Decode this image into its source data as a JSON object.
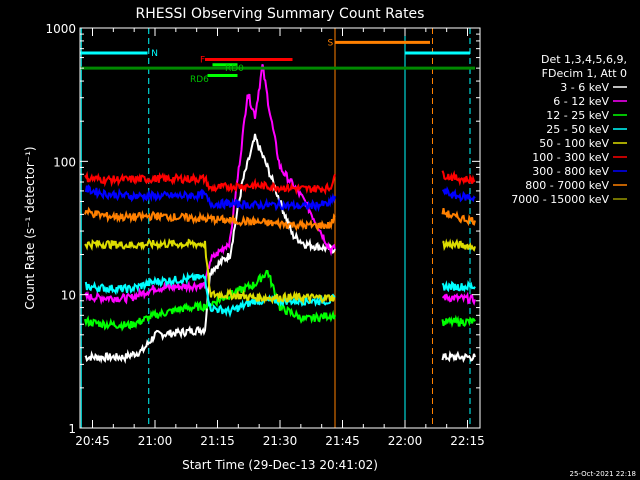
{
  "chart_data": {
    "type": "line",
    "title": "RHESSI Observing Summary Count Rates",
    "xlabel": "Start Time (29-Dec-13 20:41:02)",
    "ylabel": "Count Rate (s⁻¹ detector⁻¹)",
    "y_scale": "log",
    "ylim": [
      1,
      1000
    ],
    "y_ticks": [
      1,
      10,
      100,
      1000
    ],
    "y_tick_labels": [
      "1",
      "10",
      "100",
      "1000"
    ],
    "xlim": [
      20.7,
      22.3
    ],
    "x_ticks": [
      20.75,
      21.0,
      21.25,
      21.5,
      21.75,
      22.0,
      22.25
    ],
    "x_tick_labels": [
      "20:45",
      "21:00",
      "21:15",
      "21:30",
      "21:45",
      "22:00",
      "22:15"
    ],
    "grid": false,
    "legend": {
      "placement": "right",
      "header": [
        "Det 1,3,4,5,6,9,",
        "FDecim 1, Att 0"
      ]
    },
    "series": [
      {
        "name": "3 - 6 keV",
        "color": "#ffffff",
        "points": [
          [
            20.72,
            3.4
          ],
          [
            20.8,
            3.4
          ],
          [
            20.88,
            3.4
          ],
          [
            20.95,
            3.8
          ],
          [
            21.0,
            5.0
          ],
          [
            21.1,
            5.2
          ],
          [
            21.2,
            5.5
          ],
          [
            21.22,
            15
          ],
          [
            21.3,
            20
          ],
          [
            21.35,
            70
          ],
          [
            21.4,
            150
          ],
          [
            21.45,
            90
          ],
          [
            21.5,
            50
          ],
          [
            21.55,
            28
          ],
          [
            21.6,
            24
          ],
          [
            21.7,
            22
          ],
          [
            21.72,
            22
          ],
          [
            22.15,
            3.4
          ],
          [
            22.28,
            3.4
          ]
        ]
      },
      {
        "name": "6 - 12 keV",
        "color": "#ff00ff",
        "points": [
          [
            20.72,
            9.6
          ],
          [
            20.8,
            9.5
          ],
          [
            20.9,
            9.4
          ],
          [
            21.0,
            11.2
          ],
          [
            21.1,
            11.5
          ],
          [
            21.2,
            11.8
          ],
          [
            21.22,
            18
          ],
          [
            21.3,
            25
          ],
          [
            21.35,
            150
          ],
          [
            21.37,
            330
          ],
          [
            21.4,
            220
          ],
          [
            21.43,
            520
          ],
          [
            21.46,
            230
          ],
          [
            21.5,
            90
          ],
          [
            21.6,
            50
          ],
          [
            21.7,
            22
          ],
          [
            21.72,
            22
          ],
          [
            22.15,
            9.6
          ],
          [
            22.28,
            9.2
          ]
        ]
      },
      {
        "name": "12 - 25 keV",
        "color": "#00ff00",
        "points": [
          [
            20.72,
            6.3
          ],
          [
            20.8,
            6.0
          ],
          [
            20.9,
            5.9
          ],
          [
            21.0,
            7.0
          ],
          [
            21.1,
            7.8
          ],
          [
            21.2,
            8.2
          ],
          [
            21.22,
            8.5
          ],
          [
            21.3,
            10
          ],
          [
            21.4,
            12
          ],
          [
            21.45,
            15
          ],
          [
            21.5,
            8
          ],
          [
            21.6,
            6.5
          ],
          [
            21.7,
            7
          ],
          [
            21.72,
            7
          ],
          [
            22.15,
            6.2
          ],
          [
            22.28,
            6.3
          ]
        ]
      },
      {
        "name": "25 - 50 keV",
        "color": "#00ffff",
        "points": [
          [
            20.72,
            11.5
          ],
          [
            20.8,
            11.2
          ],
          [
            20.9,
            11.0
          ],
          [
            21.0,
            12.5
          ],
          [
            21.1,
            13
          ],
          [
            21.2,
            13.5
          ],
          [
            21.22,
            8
          ],
          [
            21.3,
            7.5
          ],
          [
            21.4,
            9
          ],
          [
            21.5,
            9
          ],
          [
            21.6,
            9
          ],
          [
            21.7,
            9
          ],
          [
            21.72,
            9.5
          ],
          [
            22.15,
            11.5
          ],
          [
            22.28,
            11.5
          ]
        ]
      },
      {
        "name": "50 - 100 keV",
        "color": "#dddd00",
        "points": [
          [
            20.72,
            24
          ],
          [
            20.8,
            24
          ],
          [
            20.9,
            23.5
          ],
          [
            21.0,
            24
          ],
          [
            21.1,
            24
          ],
          [
            21.2,
            24
          ],
          [
            21.22,
            10
          ],
          [
            21.3,
            10
          ],
          [
            21.4,
            9.5
          ],
          [
            21.5,
            9.5
          ],
          [
            21.6,
            9.5
          ],
          [
            21.7,
            9.5
          ],
          [
            21.72,
            9.5
          ],
          [
            22.15,
            24
          ],
          [
            22.28,
            23
          ]
        ]
      },
      {
        "name": "100 - 300 keV",
        "color": "#ff0000",
        "points": [
          [
            20.72,
            75
          ],
          [
            20.8,
            73
          ],
          [
            20.9,
            73
          ],
          [
            21.0,
            74
          ],
          [
            21.1,
            74
          ],
          [
            21.2,
            74
          ],
          [
            21.22,
            62
          ],
          [
            21.3,
            65
          ],
          [
            21.4,
            66
          ],
          [
            21.5,
            64
          ],
          [
            21.6,
            62
          ],
          [
            21.7,
            63
          ],
          [
            21.72,
            80
          ],
          [
            22.15,
            80
          ],
          [
            22.2,
            75
          ],
          [
            22.28,
            72
          ]
        ]
      },
      {
        "name": "300 - 800 keV",
        "color": "#0000ff",
        "points": [
          [
            20.72,
            62
          ],
          [
            20.8,
            57
          ],
          [
            20.9,
            55
          ],
          [
            21.0,
            55
          ],
          [
            21.1,
            55
          ],
          [
            21.2,
            56
          ],
          [
            21.22,
            48
          ],
          [
            21.3,
            48
          ],
          [
            21.4,
            47
          ],
          [
            21.5,
            47
          ],
          [
            21.6,
            46
          ],
          [
            21.7,
            48
          ],
          [
            21.72,
            55
          ],
          [
            22.15,
            60
          ],
          [
            22.2,
            55
          ],
          [
            22.28,
            53
          ]
        ]
      },
      {
        "name": "800 - 7000 keV",
        "color": "#ff8000",
        "points": [
          [
            20.72,
            42
          ],
          [
            20.8,
            39
          ],
          [
            20.9,
            38
          ],
          [
            21.0,
            39
          ],
          [
            21.1,
            38
          ],
          [
            21.2,
            37
          ],
          [
            21.22,
            37
          ],
          [
            21.3,
            36
          ],
          [
            21.4,
            35
          ],
          [
            21.5,
            34
          ],
          [
            21.6,
            33
          ],
          [
            21.7,
            33
          ],
          [
            21.72,
            38
          ],
          [
            22.15,
            42
          ],
          [
            22.2,
            38
          ],
          [
            22.28,
            36
          ]
        ]
      },
      {
        "name": "7000 - 15000 keV",
        "color": "#999900",
        "points": []
      }
    ],
    "annotations": {
      "labels": [
        {
          "text": "N",
          "color": "#00ffff"
        },
        {
          "text": "F",
          "color": "#ff0000"
        },
        {
          "text": "RD0",
          "color": "#00c000"
        },
        {
          "text": "RD6",
          "color": "#00c000"
        },
        {
          "text": "S",
          "color": "#ff8000"
        }
      ],
      "bars": [
        {
          "name": "night",
          "color": "#00ffff",
          "y": 650,
          "ranges": [
            [
              20.7,
              20.97
            ],
            [
              22.0,
              22.26
            ]
          ]
        },
        {
          "name": "flare",
          "color": "#ff0000",
          "y": 580,
          "ranges": [
            [
              21.2,
              21.55
            ]
          ]
        },
        {
          "name": "decimation",
          "color": "#008800",
          "y": 500,
          "ranges": [
            [
              20.7,
              22.28
            ]
          ]
        },
        {
          "name": "rd0",
          "color": "#00ff00",
          "y": 530,
          "ranges": [
            [
              21.23,
              21.33
            ]
          ]
        },
        {
          "name": "rd6",
          "color": "#00ff00",
          "y": 440,
          "ranges": [
            [
              21.21,
              21.33
            ]
          ]
        },
        {
          "name": "saa",
          "color": "#ff8000",
          "y": 780,
          "ranges": [
            [
              21.72,
              22.1
            ]
          ]
        }
      ],
      "vlines": [
        {
          "x": 20.705,
          "color": "#00ffff",
          "dashed": false
        },
        {
          "x": 20.975,
          "color": "#00ffff",
          "dashed": true
        },
        {
          "x": 21.72,
          "color": "#ff8000",
          "dashed": false
        },
        {
          "x": 22.0,
          "color": "#00ffff",
          "dashed": false
        },
        {
          "x": 22.11,
          "color": "#ff8000",
          "dashed": true
        },
        {
          "x": 22.26,
          "color": "#00ffff",
          "dashed": true
        }
      ]
    },
    "footer_timestamp": "25-Oct-2021 22:18"
  }
}
